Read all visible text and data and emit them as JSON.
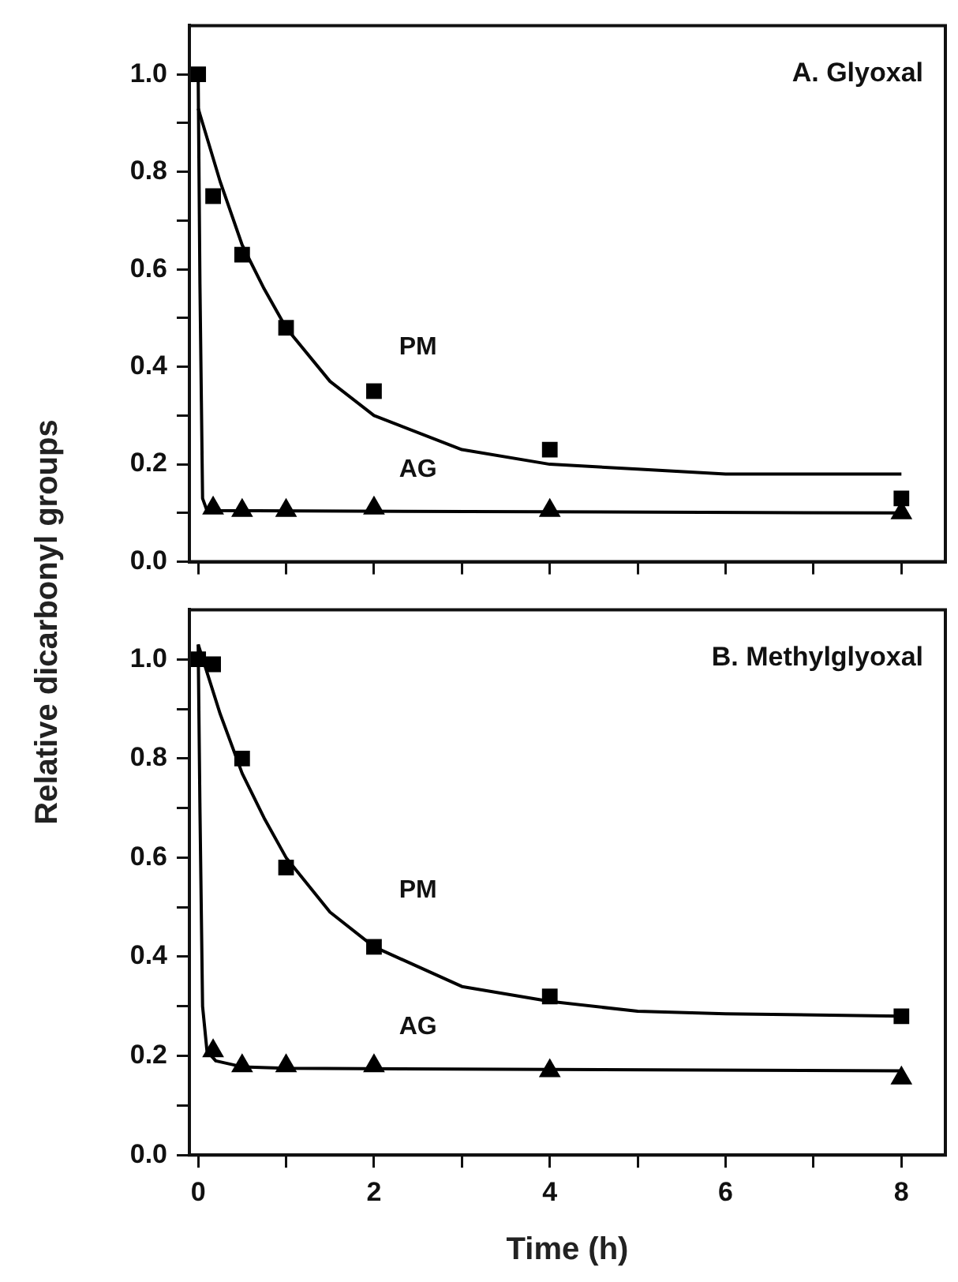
{
  "chart_data": [
    {
      "type": "scatter",
      "title": "A. Glyoxal",
      "ylabel": "Relative dicarbonyl groups",
      "legend": false,
      "grid": false,
      "tick_labels": "y",
      "xlim": [
        -0.1,
        8.5
      ],
      "xticks": [
        0,
        {
          "value": 1,
          "label": null
        },
        2,
        {
          "value": 3,
          "label": null
        },
        4,
        {
          "value": 5,
          "label": null
        },
        6,
        {
          "value": 7,
          "label": null
        },
        8
      ],
      "ylim": [
        0,
        1.1
      ],
      "yticks": [
        {
          "value": 0,
          "label": "0.0"
        },
        {
          "value": 0.1,
          "label": null
        },
        0.2,
        {
          "value": 0.3,
          "label": null
        },
        0.4,
        {
          "value": 0.5,
          "label": null
        },
        0.6,
        {
          "value": 0.7,
          "label": null
        },
        0.8,
        {
          "value": 0.9,
          "label": null
        },
        {
          "value": 1,
          "label": "1.0"
        }
      ],
      "series": [
        {
          "type": "line",
          "marker": "none",
          "color": "#000000",
          "x": [
            0,
            0.25,
            0.5,
            0.75,
            1,
            1.5,
            2,
            3,
            4,
            5,
            6,
            8
          ],
          "values": [
            0.93,
            0.78,
            0.65,
            0.56,
            0.48,
            0.37,
            0.3,
            0.23,
            0.2,
            0.19,
            0.18,
            0.18
          ]
        },
        {
          "type": "line",
          "marker": "none",
          "color": "#000000",
          "x": [
            0,
            0.02,
            0.05,
            0.1,
            8
          ],
          "values": [
            1.0,
            0.57,
            0.13,
            0.105,
            0.1
          ]
        },
        {
          "type": "scatter",
          "name": "PM",
          "marker": "square",
          "color": "#000000",
          "x": [
            0,
            0.17,
            0.5,
            1,
            2,
            4,
            8
          ],
          "values": [
            1.0,
            0.75,
            0.63,
            0.48,
            0.35,
            0.23,
            0.13
          ]
        },
        {
          "type": "scatter",
          "name": "AG",
          "marker": "triangle",
          "color": "#000000",
          "x": [
            0.17,
            0.5,
            1,
            2,
            4,
            8
          ],
          "values": [
            0.11,
            0.105,
            0.105,
            0.11,
            0.105,
            0.1
          ]
        }
      ]
    },
    {
      "type": "scatter",
      "title": "B. Methylglyoxal",
      "xlabel": "Time (h)",
      "legend": false,
      "grid": false,
      "xlim": [
        -0.1,
        8.5
      ],
      "xticks": [
        0,
        {
          "value": 1,
          "label": null
        },
        2,
        {
          "value": 3,
          "label": null
        },
        4,
        {
          "value": 5,
          "label": null
        },
        6,
        {
          "value": 7,
          "label": null
        },
        8
      ],
      "ylim": [
        0,
        1.1
      ],
      "yticks": [
        {
          "value": 0,
          "label": "0.0"
        },
        {
          "value": 0.1,
          "label": null
        },
        0.2,
        {
          "value": 0.3,
          "label": null
        },
        0.4,
        {
          "value": 0.5,
          "label": null
        },
        0.6,
        {
          "value": 0.7,
          "label": null
        },
        0.8,
        {
          "value": 0.9,
          "label": null
        },
        {
          "value": 1,
          "label": "1.0"
        }
      ],
      "series": [
        {
          "type": "line",
          "marker": "none",
          "color": "#000000",
          "x": [
            0,
            0.25,
            0.5,
            0.75,
            1,
            1.5,
            2,
            3,
            4,
            5,
            6,
            8
          ],
          "values": [
            1.03,
            0.89,
            0.77,
            0.68,
            0.6,
            0.49,
            0.42,
            0.34,
            0.31,
            0.29,
            0.285,
            0.28
          ]
        },
        {
          "type": "line",
          "marker": "none",
          "color": "#000000",
          "x": [
            0,
            0.02,
            0.05,
            0.1,
            0.2,
            0.5,
            1,
            8
          ],
          "values": [
            1.03,
            0.7,
            0.3,
            0.21,
            0.19,
            0.178,
            0.175,
            0.17
          ]
        },
        {
          "type": "scatter",
          "name": "PM",
          "marker": "square",
          "color": "#000000",
          "x": [
            0,
            0.17,
            0.5,
            1,
            2,
            4,
            8
          ],
          "values": [
            1.0,
            0.99,
            0.8,
            0.58,
            0.42,
            0.32,
            0.28
          ]
        },
        {
          "type": "scatter",
          "name": "AG",
          "marker": "triangle",
          "color": "#000000",
          "x": [
            0.17,
            0.5,
            1,
            2,
            4,
            8
          ],
          "values": [
            0.21,
            0.18,
            0.18,
            0.18,
            0.17,
            0.155
          ]
        }
      ]
    }
  ]
}
